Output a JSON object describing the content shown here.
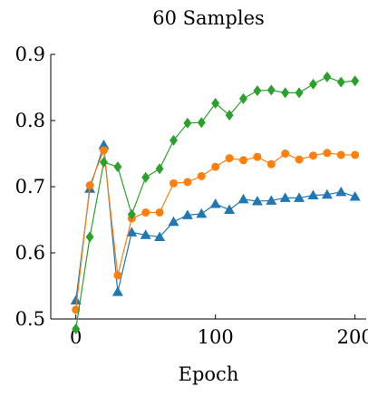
{
  "chart_data": {
    "type": "line",
    "title": "60 Samples",
    "xlabel": "Epoch",
    "ylabel": "",
    "xlim": [
      -18,
      208
    ],
    "ylim": [
      0.5,
      0.9
    ],
    "xticks": [
      0,
      100,
      200
    ],
    "yticks": [
      0.5,
      0.6,
      0.7,
      0.8,
      0.9
    ],
    "x": [
      0,
      10,
      20,
      30,
      40,
      50,
      60,
      70,
      80,
      90,
      100,
      110,
      120,
      130,
      140,
      150,
      160,
      170,
      180,
      190,
      200
    ],
    "grid": false,
    "series": [
      {
        "color": "#1f77b4",
        "marker": "triangle",
        "values": [
          0.528,
          0.697,
          0.763,
          0.541,
          0.631,
          0.627,
          0.624,
          0.647,
          0.657,
          0.659,
          0.674,
          0.665,
          0.681,
          0.678,
          0.679,
          0.683,
          0.683,
          0.687,
          0.688,
          0.692,
          0.685
        ]
      },
      {
        "color": "#ff7f0e",
        "marker": "circle",
        "values": [
          0.514,
          0.702,
          0.755,
          0.566,
          0.652,
          0.661,
          0.661,
          0.705,
          0.707,
          0.716,
          0.73,
          0.743,
          0.74,
          0.745,
          0.734,
          0.75,
          0.741,
          0.747,
          0.751,
          0.748,
          0.748
        ]
      },
      {
        "color": "#2ca02c",
        "marker": "diamond",
        "values": [
          0.485,
          0.624,
          0.737,
          0.73,
          0.658,
          0.714,
          0.727,
          0.77,
          0.796,
          0.797,
          0.826,
          0.808,
          0.833,
          0.845,
          0.846,
          0.842,
          0.842,
          0.855,
          0.866,
          0.858,
          0.86
        ]
      }
    ]
  }
}
